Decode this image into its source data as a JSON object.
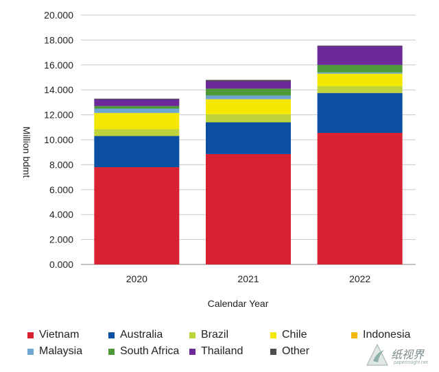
{
  "chart_data": {
    "type": "bar",
    "stacked": true,
    "xlabel": "Calendar Year",
    "ylabel": "Million bdmt",
    "ylim": [
      0,
      20
    ],
    "y_ticks": [
      0,
      2,
      4,
      6,
      8,
      10,
      12,
      14,
      16,
      18,
      20
    ],
    "y_tick_labels": [
      "0.000",
      "2.000",
      "4.000",
      "6.000",
      "8.000",
      "10.000",
      "12.000",
      "14.000",
      "16.000",
      "18.000",
      "20.000"
    ],
    "grid": "horizontal",
    "legend_position": "bottom",
    "categories": [
      "2020",
      "2021",
      "2022"
    ],
    "series": [
      {
        "name": "Vietnam",
        "color": "#d92231",
        "values": [
          7.8,
          8.85,
          10.55
        ]
      },
      {
        "name": "Australia",
        "color": "#0b4fa3",
        "values": [
          2.5,
          2.55,
          3.2
        ]
      },
      {
        "name": "Brazil",
        "color": "#bfd43a",
        "values": [
          0.55,
          0.65,
          0.55
        ]
      },
      {
        "name": "Chile",
        "color": "#f5e800",
        "values": [
          1.3,
          1.2,
          1.0
        ]
      },
      {
        "name": "Indonesia",
        "color": "#f2b80c",
        "values": [
          0.0,
          0.0,
          0.0
        ]
      },
      {
        "name": "Malaysia",
        "color": "#6fa6cf",
        "values": [
          0.35,
          0.3,
          0.1
        ]
      },
      {
        "name": "South Africa",
        "color": "#4f9a38",
        "values": [
          0.2,
          0.55,
          0.6
        ]
      },
      {
        "name": "Thailand",
        "color": "#6c2a99",
        "values": [
          0.55,
          0.6,
          1.5
        ]
      },
      {
        "name": "Other",
        "color": "#4d4d4d",
        "values": [
          0.05,
          0.1,
          0.05
        ]
      }
    ]
  },
  "watermark": {
    "text": "纸视界",
    "url": "paperinsight.net"
  }
}
